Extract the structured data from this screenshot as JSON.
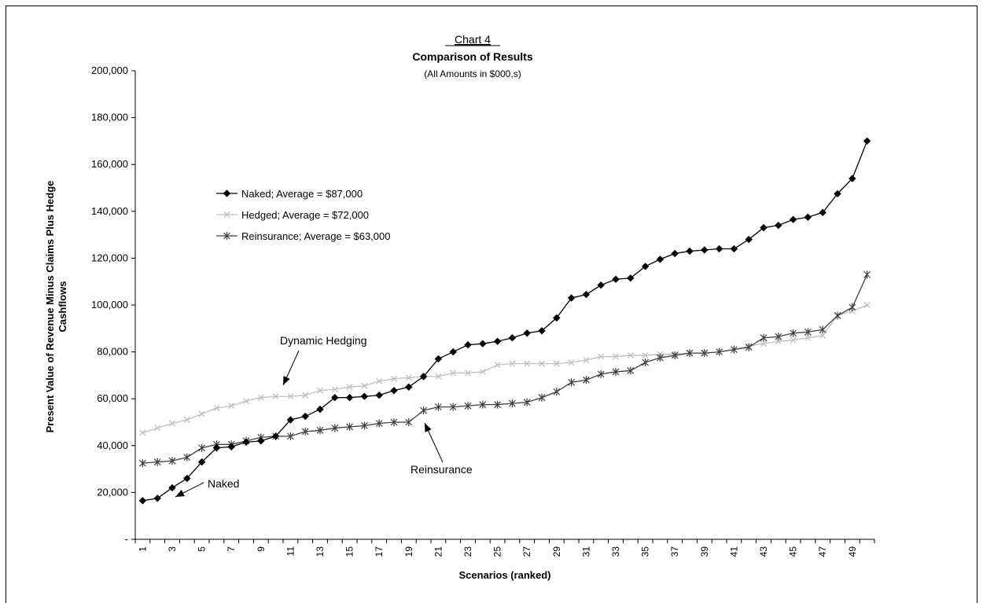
{
  "chart_data": {
    "type": "line",
    "chart_number": "Chart 4",
    "title": "Comparison of Results",
    "subtitle": "(All Amounts in $000,s)",
    "xlabel": "Scenarios (ranked)",
    "ylabel_line1": "Present Value of Revenue Minus Claims Plus Hedge",
    "ylabel_line2": "Cashflows",
    "ylim": [
      0,
      200000
    ],
    "yticks": [
      0,
      20000,
      40000,
      60000,
      80000,
      100000,
      120000,
      140000,
      160000,
      180000,
      200000
    ],
    "ytick_labels": [
      "-",
      "20,000",
      "40,000",
      "60,000",
      "80,000",
      "100,000",
      "120,000",
      "140,000",
      "160,000",
      "180,000",
      "200,000"
    ],
    "x": [
      1,
      2,
      3,
      4,
      5,
      6,
      7,
      8,
      9,
      10,
      11,
      12,
      13,
      14,
      15,
      16,
      17,
      18,
      19,
      20,
      21,
      22,
      23,
      24,
      25,
      26,
      27,
      28,
      29,
      30,
      31,
      32,
      33,
      34,
      35,
      36,
      37,
      38,
      39,
      40,
      41,
      42,
      43,
      44,
      45,
      46,
      47,
      48,
      49,
      50
    ],
    "xtick_labels": [
      "1",
      "3",
      "5",
      "7",
      "9",
      "11",
      "13",
      "15",
      "17",
      "19",
      "21",
      "23",
      "25",
      "27",
      "29",
      "31",
      "33",
      "35",
      "37",
      "39",
      "41",
      "43",
      "45",
      "47",
      "49"
    ],
    "legend_position": "upper-left",
    "series": [
      {
        "name": "Naked; Average = $87,000",
        "color": "#000000",
        "marker": "diamond",
        "values": [
          16500,
          17500,
          22000,
          26000,
          33000,
          39000,
          39500,
          41500,
          42000,
          44000,
          51000,
          52500,
          55500,
          60500,
          60500,
          61000,
          61500,
          63500,
          65000,
          69500,
          77000,
          80000,
          83000,
          83500,
          84500,
          86000,
          88000,
          89000,
          94500,
          103000,
          104500,
          108500,
          111000,
          111500,
          116500,
          119500,
          122000,
          123000,
          123500,
          124000,
          124000,
          128000,
          133000,
          134000,
          136500,
          137500,
          139500,
          147500,
          154000,
          170000
        ]
      },
      {
        "name": "Hedged; Average = $72,000",
        "color": "#bfbfbf",
        "marker": "x",
        "values": [
          45500,
          47500,
          49500,
          51000,
          53500,
          56000,
          57000,
          59000,
          60500,
          61000,
          61000,
          61500,
          63500,
          64000,
          65000,
          65500,
          67500,
          68500,
          69000,
          69500,
          69500,
          71000,
          71000,
          71500,
          74500,
          75000,
          75000,
          75000,
          75000,
          75500,
          76500,
          78000,
          78000,
          78500,
          78500,
          79000,
          79000,
          79500,
          79500,
          80000,
          81000,
          82500,
          83500,
          84500,
          85000,
          86000,
          87000,
          95500,
          97500,
          100000
        ]
      },
      {
        "name": "Reinsurance; Average = $63,000",
        "color": "#404040",
        "marker": "star",
        "values": [
          32500,
          33000,
          33500,
          35000,
          39000,
          40500,
          40500,
          42000,
          43500,
          44000,
          44000,
          46000,
          46500,
          47500,
          48000,
          48500,
          49500,
          50000,
          50000,
          55000,
          56500,
          56500,
          57000,
          57500,
          57500,
          58000,
          58500,
          60500,
          63000,
          67000,
          68000,
          70500,
          71500,
          72000,
          75500,
          77500,
          78500,
          79500,
          79500,
          80000,
          81000,
          82000,
          86000,
          86500,
          88000,
          88500,
          89500,
          95500,
          99000,
          113000
        ]
      }
    ],
    "annotations": [
      {
        "text": "Dynamic Hedging",
        "x_value": 10,
        "y_value": 79000,
        "points_to": [
          10,
          61000
        ]
      },
      {
        "text": "Reinsurance",
        "x_value": 28,
        "y_value": 42000,
        "points_to": [
          20,
          55000
        ]
      },
      {
        "text": "Naked",
        "x_value": 5,
        "y_value": 16000,
        "points_to": [
          3,
          21000
        ]
      }
    ]
  }
}
